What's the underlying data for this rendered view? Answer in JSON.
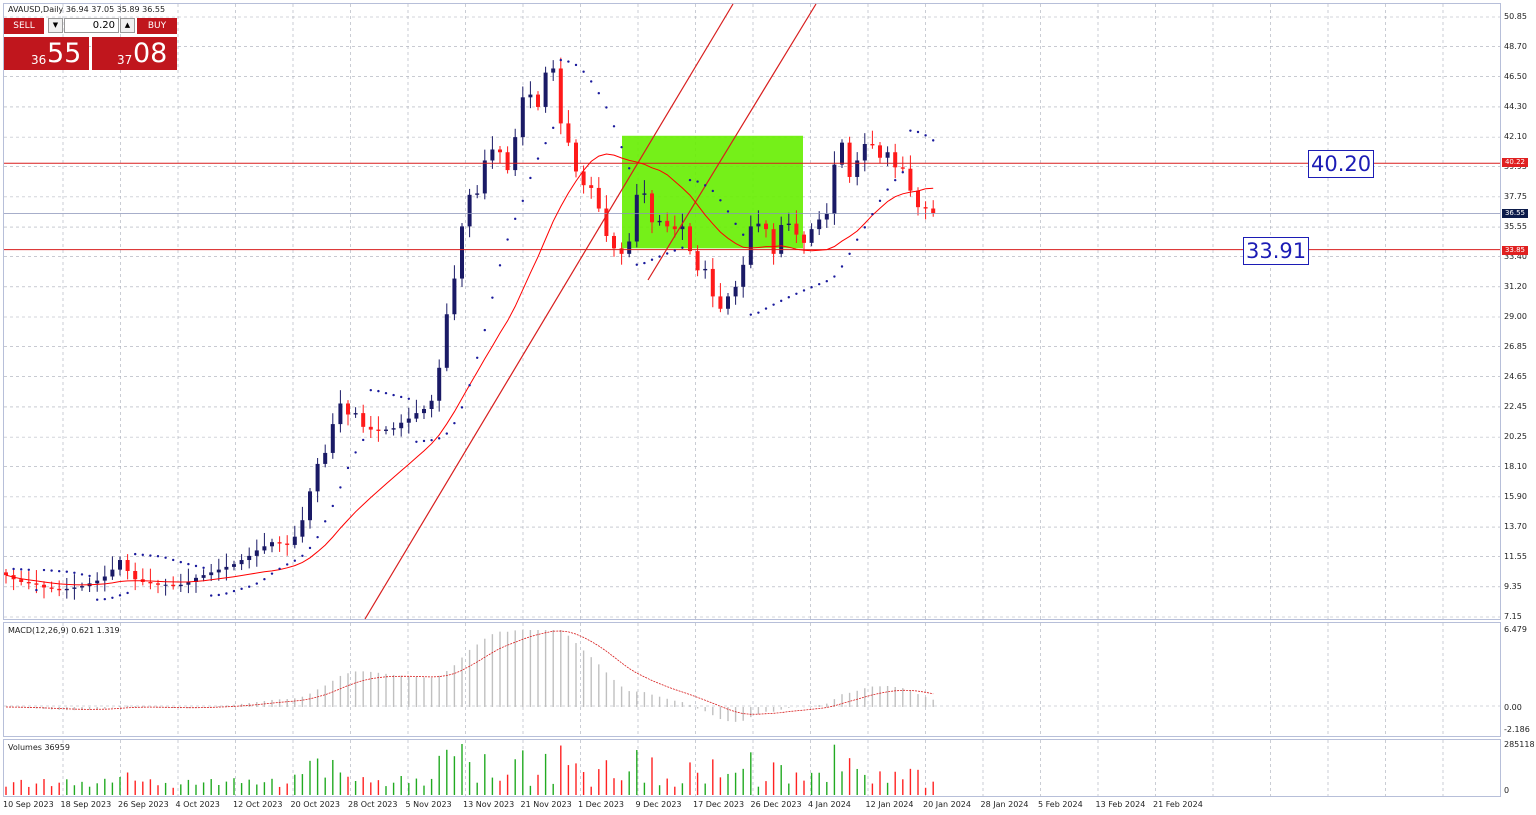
{
  "chart_title": "AVAUSD,Daily  36.94 37.05 35.89 36.55",
  "trade_panel": {
    "sell_label": "SELL",
    "buy_label": "BUY",
    "lot": "0.20",
    "sell_price_small": "36",
    "sell_price_big": "55",
    "buy_price_small": "37",
    "buy_price_big": "08"
  },
  "annotations": {
    "level_upper": "40.20",
    "level_lower": "33.91"
  },
  "price_tags": {
    "upper": "40.22",
    "current": "36.55",
    "lower": "33.85"
  },
  "macd_label": "MACD(12,26,9) 0.621 1.319",
  "macd_axis": [
    "6.479",
    "0.00",
    "-2.186"
  ],
  "volume_label": "Volumes 36959",
  "volume_axis": [
    "285118",
    "0"
  ],
  "price_axis": [
    "50.85",
    "48.70",
    "46.50",
    "44.30",
    "42.10",
    "39.95",
    "37.75",
    "35.55",
    "33.40",
    "31.20",
    "29.00",
    "26.85",
    "24.65",
    "22.45",
    "20.25",
    "18.10",
    "15.90",
    "13.70",
    "11.55",
    "9.35",
    "7.15"
  ],
  "dates": [
    "10 Sep 2023",
    "18 Sep 2023",
    "26 Sep 2023",
    "4 Oct 2023",
    "12 Oct 2023",
    "20 Oct 2023",
    "28 Oct 2023",
    "5 Nov 2023",
    "13 Nov 2023",
    "21 Nov 2023",
    "1 Dec 2023",
    "9 Dec 2023",
    "17 Dec 2023",
    "26 Dec 2023",
    "4 Jan 2024",
    "12 Jan 2024",
    "20 Jan 2024",
    "28 Jan 2024",
    "5 Feb 2024",
    "13 Feb 2024",
    "21 Feb 2024"
  ],
  "colors": {
    "bull": "#1a1a66",
    "bear": "#ff1a1a",
    "ma": "#ff0000",
    "sar": "#1a1a9c",
    "zone": "#66ee00",
    "hline": "#d81e1e",
    "grid": "#a8acb8"
  },
  "chart_data": {
    "type": "candlestick",
    "symbol": "AVAUSD",
    "timeframe": "Daily",
    "ohlc_last": {
      "open": 36.94,
      "high": 37.05,
      "low": 35.89,
      "close": 36.55
    },
    "price_range": [
      7.15,
      50.85
    ],
    "x_dates": [
      "10 Sep 2023",
      "18 Sep 2023",
      "26 Sep 2023",
      "4 Oct 2023",
      "12 Oct 2023",
      "20 Oct 2023",
      "28 Oct 2023",
      "5 Nov 2023",
      "13 Nov 2023",
      "21 Nov 2023",
      "1 Dec 2023",
      "9 Dec 2023",
      "17 Dec 2023",
      "26 Dec 2023",
      "4 Jan 2024",
      "12 Jan 2024",
      "20 Jan 2024",
      "28 Jan 2024",
      "5 Feb 2024",
      "13 Feb 2024",
      "21 Feb 2024"
    ],
    "closes": [
      10.2,
      9.9,
      9.7,
      9.6,
      9.5,
      9.3,
      9.2,
      9.1,
      9.2,
      9.3,
      9.4,
      9.6,
      9.8,
      10.1,
      10.6,
      11.3,
      10.5,
      9.9,
      9.7,
      9.6,
      9.5,
      9.5,
      9.4,
      9.5,
      9.7,
      10.0,
      10.2,
      10.4,
      10.6,
      10.8,
      11.0,
      11.3,
      11.6,
      12.0,
      12.3,
      12.6,
      12.5,
      12.4,
      13.0,
      14.2,
      16.3,
      18.3,
      19.1,
      21.2,
      22.7,
      21.9,
      22.0,
      21.0,
      20.8,
      20.7,
      20.8,
      20.9,
      21.3,
      21.6,
      22.0,
      22.3,
      22.9,
      25.3,
      29.2,
      31.8,
      35.6,
      37.9,
      38.0,
      40.4,
      41.2,
      41.0,
      39.7,
      42.1,
      45.0,
      45.2,
      44.3,
      46.8,
      47.1,
      43.1,
      41.7,
      39.6,
      38.6,
      38.4,
      36.9,
      34.9,
      34.0,
      33.6,
      34.5,
      37.9,
      38.0,
      35.9,
      36.0,
      35.6,
      35.4,
      35.6,
      33.8,
      32.4,
      32.5,
      30.5,
      29.6,
      30.5,
      31.2,
      32.8,
      35.6,
      35.8,
      35.4,
      33.6,
      35.7,
      35.8,
      35.0,
      34.4,
      35.4,
      36.1,
      36.5,
      40.1,
      41.7,
      39.2,
      40.4,
      41.6,
      41.5,
      40.6,
      41.0,
      39.9,
      39.8,
      38.2,
      37.0,
      36.9,
      36.55
    ],
    "sma_period_approx": 20,
    "parabolic_sar": true,
    "horizontal_levels": [
      40.2,
      33.91
    ],
    "current_price": 36.55,
    "zone": {
      "from_date": "4 Dec 2023",
      "to_date": "29 Dec 2023",
      "low": 34.0,
      "high": 42.2
    },
    "macd": {
      "params": "12,26,9",
      "value": 0.621,
      "signal": 1.319,
      "range": [
        -2.186,
        6.479
      ]
    },
    "volume": {
      "last": 36959,
      "max": 285118
    }
  }
}
